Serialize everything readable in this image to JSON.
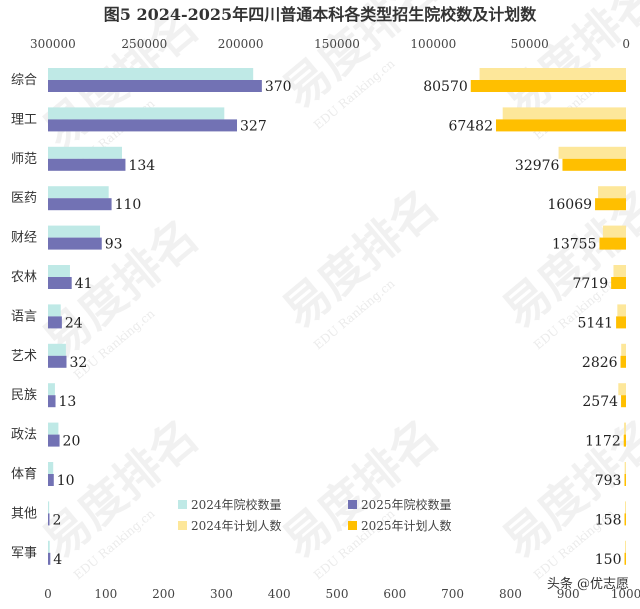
{
  "chart_data": {
    "type": "bar",
    "title": "图5 2024-2025年四川普通本科各类型招生院校数及计划数",
    "categories": [
      "综合",
      "理工",
      "师范",
      "医药",
      "财经",
      "农林",
      "语言",
      "艺术",
      "民族",
      "政法",
      "体育",
      "其他",
      "军事"
    ],
    "left_axis": {
      "ticks": [
        "0",
        "100",
        "200",
        "300",
        "400",
        "500",
        "600",
        "700",
        "800",
        "900",
        "1000"
      ],
      "range": [
        0,
        1000
      ]
    },
    "right_axis": {
      "ticks": [
        "300000",
        "250000",
        "200000",
        "150000",
        "100000",
        "50000",
        "0"
      ],
      "range": [
        0,
        300000
      ],
      "reversed": true
    },
    "series": [
      {
        "name": "2024年院校数量",
        "axis": "left",
        "color": "#bfe9e6",
        "values": [
          355,
          305,
          128,
          105,
          90,
          38,
          22,
          31,
          12,
          18,
          9,
          2,
          3
        ]
      },
      {
        "name": "2025年院校数量",
        "axis": "left",
        "color": "#7272b4",
        "values": [
          370,
          327,
          134,
          110,
          93,
          41,
          24,
          32,
          13,
          20,
          10,
          2,
          4
        ],
        "labels": [
          "370",
          "327",
          "134",
          "110",
          "93",
          "41",
          "24",
          "32",
          "13",
          "20",
          "10",
          "2",
          "4"
        ]
      },
      {
        "name": "2024年计划人数",
        "axis": "right",
        "color": "#fde79a",
        "values": [
          76000,
          64000,
          35000,
          14500,
          12000,
          6500,
          4500,
          2500,
          4000,
          1000,
          700,
          150,
          140
        ]
      },
      {
        "name": "2025年计划人数",
        "axis": "right",
        "color": "#ffbf00",
        "values": [
          80570,
          67482,
          32976,
          16069,
          13755,
          7719,
          5141,
          2826,
          2574,
          1172,
          793,
          158,
          150
        ],
        "labels": [
          "80570",
          "67482",
          "32976",
          "16069",
          "13755",
          "7719",
          "5141",
          "2826",
          "2574",
          "1172",
          "793",
          "158",
          "150"
        ]
      }
    ],
    "legend": "bottom-center",
    "grid": false
  },
  "watermark": {
    "brand": "易度排名",
    "sub": "EDU Ranking.cn"
  },
  "credit": "头条 @优志愿",
  "colors": {
    "wm": "#d8d8d8",
    "text": "#333333"
  }
}
